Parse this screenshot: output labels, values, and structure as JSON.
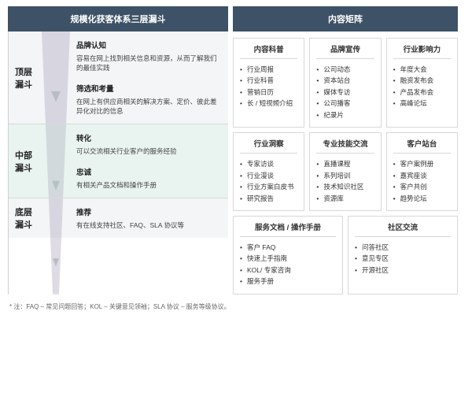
{
  "left": {
    "header": "规模化获客体系三层漏斗",
    "funnel": {
      "colors": {
        "top_bg": "rgba(175,185,195,0.15)",
        "mid_bg": "rgba(168,210,195,0.25)",
        "bot_bg": "rgba(175,185,195,0.15)",
        "shape_fill": "#b8b2c4",
        "arrow_fill": "#808a96"
      },
      "stages": [
        {
          "label": "顶层\n漏斗",
          "blocks": [
            {
              "title": "品牌认知",
              "desc": "容易在网上找到相关信息和资源，从而了解我们的最佳实践"
            },
            {
              "title": "筛选和考量",
              "desc": "在网上有供应商相关的解决方案、定价、彼此差异化对比的信息"
            }
          ]
        },
        {
          "label": "中部\n漏斗",
          "blocks": [
            {
              "title": "转化",
              "desc": "可以交流相关行业客户的服务经验"
            },
            {
              "title": "忠诚",
              "desc": "有相关产品文档和操作手册"
            }
          ]
        },
        {
          "label": "底层\n漏斗",
          "blocks": [
            {
              "title": "推荐",
              "desc": "有在线支持社区、FAQ、SLA 协议等"
            }
          ]
        }
      ]
    }
  },
  "right": {
    "header": "内容矩阵",
    "rows": [
      {
        "cols": [
          {
            "title": "内容科普",
            "items": [
              "行业周报",
              "行业科普",
              "营销日历",
              "长 / 短视频介绍"
            ]
          },
          {
            "title": "品牌宣传",
            "items": [
              "公司动态",
              "资本站台",
              "媒体专访",
              "公司播客",
              "纪录片"
            ]
          },
          {
            "title": "行业影响力",
            "items": [
              "年度大会",
              "融资发布会",
              "产品发布会",
              "高峰论坛"
            ]
          }
        ]
      },
      {
        "cols": [
          {
            "title": "行业洞察",
            "items": [
              "专家访谈",
              "行业漫谈",
              "行业方案白皮书",
              "研究报告"
            ]
          },
          {
            "title": "专业技能交流",
            "items": [
              "直播课程",
              "系列培训",
              "技术知识社区",
              "资源库"
            ]
          },
          {
            "title": "客户站台",
            "items": [
              "客户案例册",
              "嘉宾座谈",
              "客户共创",
              "趋势论坛"
            ]
          }
        ]
      },
      {
        "cols": [
          {
            "title": "服务文档 / 操作手册",
            "wide": true,
            "items": [
              "客户 FAQ",
              "快速上手指南",
              "KOL/ 专家咨询",
              "服务手册"
            ]
          },
          {
            "title": "社区交流",
            "wide": true,
            "items": [
              "问答社区",
              "意见专区",
              "开源社区"
            ]
          }
        ]
      }
    ]
  },
  "footnote": "* 注：FAQ – 常见问题回答；KOL – 关键意见领袖；SLA 协议 – 服务等级协议。",
  "palette": {
    "header_bg": "#3d5266",
    "border": "#d8d8d8",
    "text": "#333333"
  }
}
